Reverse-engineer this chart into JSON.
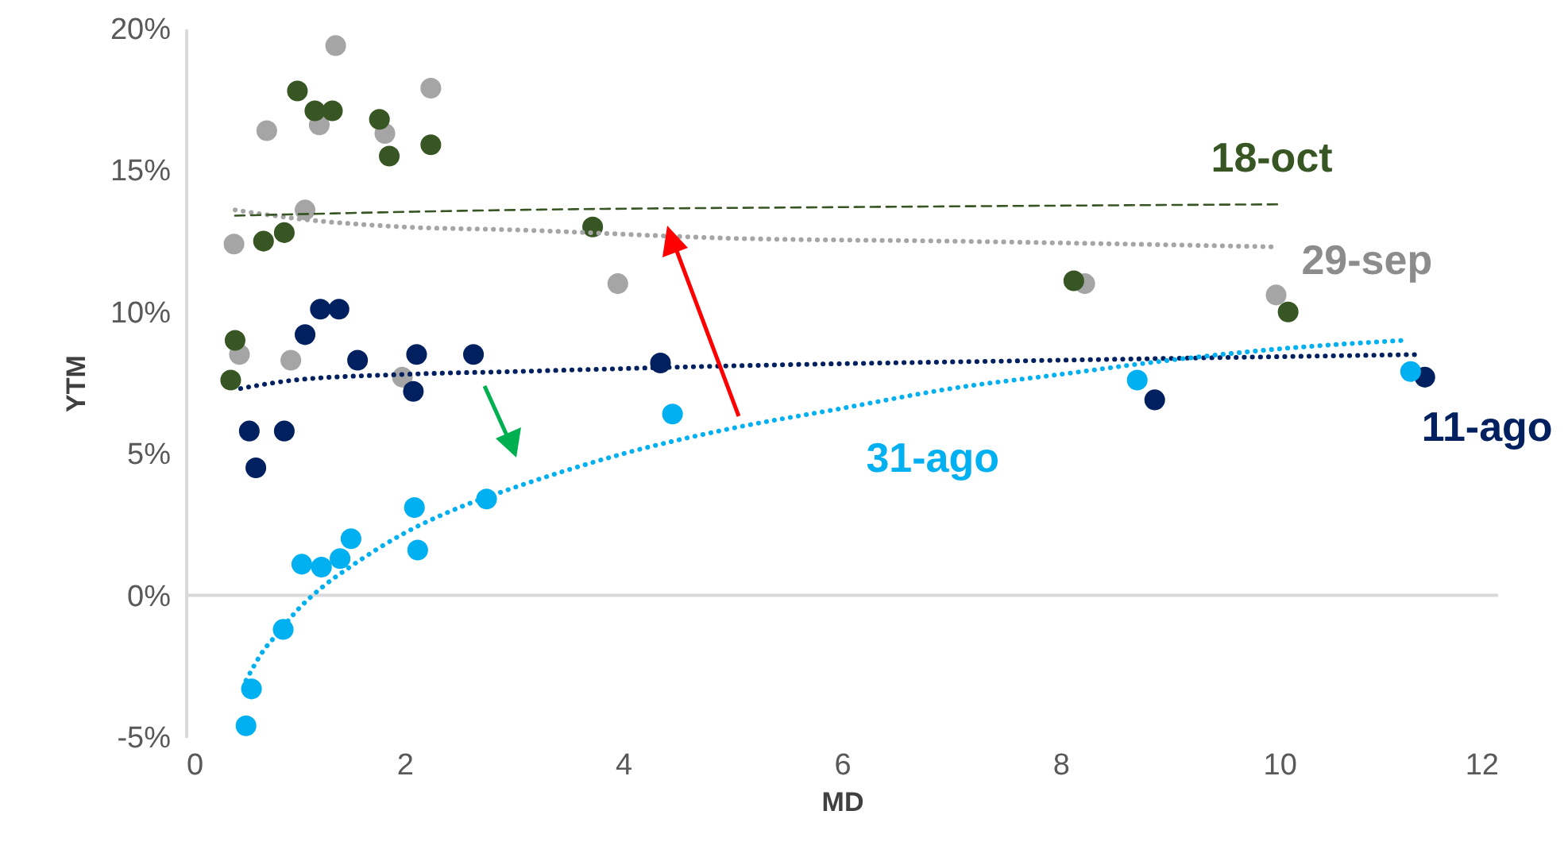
{
  "chart_data": {
    "type": "scatter",
    "xlabel": "MD",
    "ylabel": "YTM",
    "xlim": [
      0,
      12
    ],
    "xticks": [
      0,
      2,
      4,
      6,
      8,
      10,
      12
    ],
    "ylim": [
      -5,
      20
    ],
    "yticks": [
      {
        "value": -5,
        "label": "-5%"
      },
      {
        "value": 0,
        "label": "0%"
      },
      {
        "value": 5,
        "label": "5%"
      },
      {
        "value": 10,
        "label": "10%"
      },
      {
        "value": 15,
        "label": "15%"
      },
      {
        "value": 20,
        "label": "20%"
      }
    ],
    "marker": "circle",
    "ref_lines": [
      {
        "axis": "y",
        "value": 0,
        "color": "#d9d9d9"
      }
    ],
    "series": [
      {
        "name": "29-sep",
        "color": "#a5a5a5",
        "x": [
          1.37,
          2.24,
          0.74,
          1.22,
          1.82,
          1.09,
          0.44,
          0.49,
          0.96,
          1.98,
          3.95,
          8.22,
          9.97
        ],
        "values": [
          19.4,
          17.9,
          16.4,
          16.6,
          16.3,
          13.6,
          12.4,
          8.5,
          8.3,
          7.7,
          11.0,
          11.0,
          10.6
        ]
      },
      {
        "name": "18-oct",
        "color": "#375623",
        "x": [
          1.02,
          1.18,
          1.34,
          1.77,
          1.86,
          2.24,
          0.71,
          0.9,
          0.45,
          0.41,
          3.72,
          8.12,
          10.08
        ],
        "values": [
          17.8,
          17.1,
          17.1,
          16.8,
          15.5,
          15.9,
          12.5,
          12.8,
          9.0,
          7.6,
          13.0,
          11.1,
          10.0
        ]
      },
      {
        "name": "11-ago",
        "color": "#002060",
        "x": [
          1.23,
          1.4,
          1.09,
          1.57,
          2.11,
          2.63,
          2.08,
          0.58,
          0.9,
          0.64,
          4.34,
          8.86,
          11.33
        ],
        "values": [
          10.1,
          10.1,
          9.2,
          8.3,
          8.5,
          8.5,
          7.2,
          5.8,
          5.8,
          4.5,
          8.2,
          6.9,
          7.7
        ]
      },
      {
        "name": "31-ago",
        "color": "#00b0f0",
        "x": [
          0.55,
          0.6,
          0.89,
          1.06,
          1.24,
          1.41,
          1.51,
          2.09,
          2.12,
          2.75,
          4.45,
          8.7,
          11.2
        ],
        "values": [
          -4.6,
          -3.3,
          -1.2,
          1.1,
          1.0,
          1.3,
          2.0,
          3.1,
          1.6,
          3.4,
          6.4,
          7.6,
          7.9
        ]
      },
      {
        "type": "line",
        "marker": "none",
        "color": "#a5a5a5",
        "line_style": "dotted",
        "x": [
          0.45,
          1,
          2,
          3,
          5,
          7,
          9.95
        ],
        "values": [
          13.6,
          13.3,
          13.0,
          12.9,
          12.6,
          12.5,
          12.3
        ]
      },
      {
        "type": "line",
        "marker": "none",
        "color": "#375623",
        "line_style": "dashed",
        "x": [
          0.45,
          3,
          6,
          10.03
        ],
        "values": [
          13.4,
          13.6,
          13.7,
          13.8
        ]
      },
      {
        "type": "line",
        "marker": "none",
        "color": "#002060",
        "line_style": "dotted",
        "x": [
          0.5,
          1,
          2,
          3,
          5,
          8,
          11.27
        ],
        "values": [
          7.3,
          7.6,
          7.8,
          7.9,
          8.1,
          8.3,
          8.5
        ]
      },
      {
        "type": "line",
        "marker": "none",
        "color": "#00b0f0",
        "line_style": "dotted",
        "x": [
          0.55,
          0.7,
          0.85,
          1,
          1.25,
          1.5,
          2,
          2.5,
          3,
          4,
          5,
          6,
          7,
          8,
          9,
          10,
          11.14
        ],
        "values": [
          -3.0,
          -2.0,
          -1.3,
          -0.6,
          0.3,
          1.0,
          2.2,
          3.1,
          3.8,
          5.0,
          5.9,
          6.6,
          7.3,
          7.8,
          8.3,
          8.7,
          9.0
        ]
      }
    ]
  }
}
